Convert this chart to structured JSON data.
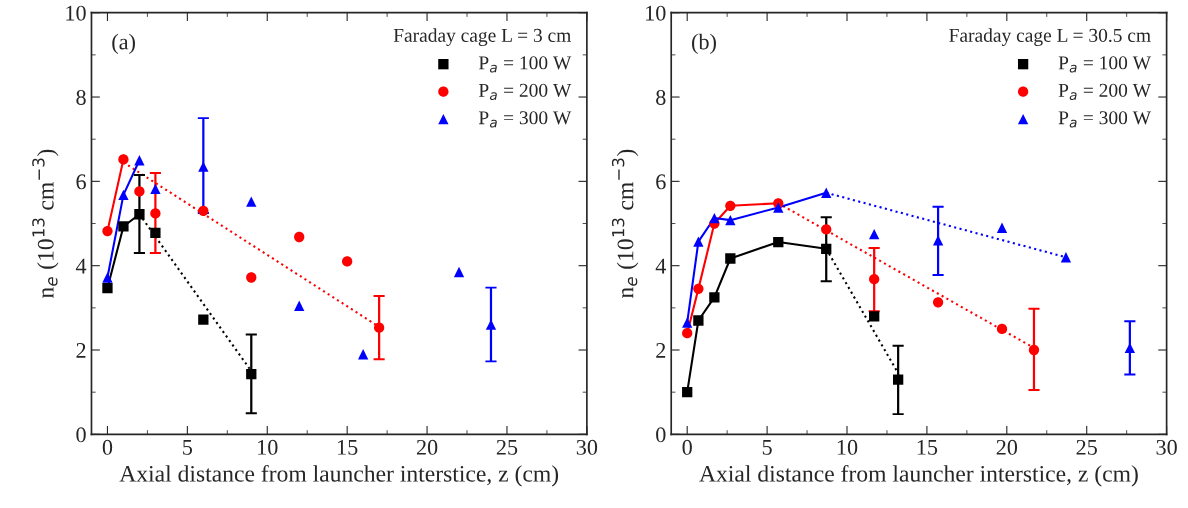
{
  "chart_data": [
    {
      "type": "scatter",
      "title": "(a)",
      "xlabel": "Axial distance from launcher interstice, z (cm)",
      "ylabel": "n$_{e}$ (10$^{13}$ cm$^{−3}$)",
      "legend_title": "Faraday cage L = 3 cm",
      "legend": "top right",
      "grid": false,
      "xlim": [
        -1,
        30
      ],
      "xticks": [
        0,
        5,
        10,
        15,
        20,
        25,
        30
      ],
      "ylim": [
        0,
        10
      ],
      "yticks": [
        0,
        2,
        4,
        6,
        8,
        10
      ],
      "series": [
        {
          "name": "P$_{a}$ = 100 W",
          "color": "#000000",
          "marker": "square",
          "x": [
            0,
            1,
            2,
            3,
            6,
            9
          ],
          "values": [
            3.47,
            4.93,
            5.22,
            4.78,
            2.72,
            1.43
          ],
          "errors": [
            null,
            null,
            [
              4.3,
              6.15
            ],
            null,
            null,
            [
              0.5,
              2.37
            ]
          ]
        },
        {
          "name": "P$_{a}$ = 200 W",
          "color": "#ff0000",
          "marker": "circle",
          "x": [
            0,
            1,
            2,
            3,
            6,
            9,
            12,
            15,
            17
          ],
          "values": [
            4.82,
            6.52,
            5.76,
            5.24,
            5.3,
            3.72,
            4.68,
            4.1,
            2.53
          ],
          "errors": [
            null,
            null,
            null,
            [
              4.3,
              6.2
            ],
            null,
            null,
            null,
            null,
            [
              1.78,
              3.28
            ]
          ]
        },
        {
          "name": "P$_{a}$ = 300 W",
          "color": "#0000ff",
          "marker": "triangle",
          "x": [
            0,
            1,
            2,
            3,
            6,
            9,
            12,
            16,
            22,
            24
          ],
          "values": [
            3.72,
            5.68,
            6.5,
            5.82,
            6.35,
            5.52,
            3.05,
            1.9,
            3.85,
            2.6
          ],
          "errors": [
            null,
            null,
            null,
            null,
            [
              5.25,
              7.5
            ],
            null,
            null,
            null,
            null,
            [
              1.73,
              3.48
            ]
          ]
        },
        {
          "type": "line",
          "color": "#000000",
          "line_style": "solid",
          "x": [
            0,
            1,
            2
          ],
          "values": [
            3.47,
            4.93,
            5.22
          ]
        },
        {
          "type": "line",
          "color": "#000000",
          "line_style": "dotted",
          "x": [
            2,
            9
          ],
          "values": [
            5.22,
            1.5
          ]
        },
        {
          "type": "line",
          "color": "#ff0000",
          "line_style": "solid",
          "x": [
            0,
            1
          ],
          "values": [
            4.82,
            6.52
          ]
        },
        {
          "type": "line",
          "color": "#ff0000",
          "line_style": "dotted",
          "x": [
            1,
            17
          ],
          "values": [
            6.45,
            2.55
          ]
        },
        {
          "type": "line",
          "color": "#0000ff",
          "line_style": "solid",
          "x": [
            0,
            1,
            2
          ],
          "values": [
            3.72,
            5.68,
            6.5
          ]
        }
      ]
    },
    {
      "type": "scatter",
      "title": "(b)",
      "xlabel": "Axial distance from launcher interstice, z (cm)",
      "ylabel": "n$_{e}$ (10$^{13}$ cm$^{−3}$)",
      "legend_title": "Faraday cage L = 30.5 cm",
      "legend": "top right",
      "grid": false,
      "xlim": [
        -1,
        30
      ],
      "xticks": [
        0,
        5,
        10,
        15,
        20,
        25,
        30
      ],
      "ylim": [
        0,
        10
      ],
      "yticks": [
        0,
        2,
        4,
        6,
        8,
        10
      ],
      "series": [
        {
          "name": "P$_{a}$ = 100 W",
          "color": "#000000",
          "marker": "square",
          "x": [
            0,
            0.7,
            1.7,
            2.7,
            5.7,
            8.7,
            11.7,
            13.2
          ],
          "values": [
            1.0,
            2.7,
            3.25,
            4.17,
            4.56,
            4.4,
            2.8,
            1.3
          ],
          "errors": [
            null,
            null,
            null,
            null,
            null,
            [
              3.63,
              5.15
            ],
            null,
            [
              0.48,
              2.1
            ]
          ]
        },
        {
          "name": "P$_{a}$ = 200 W",
          "color": "#ff0000",
          "marker": "circle",
          "x": [
            0,
            0.7,
            1.7,
            2.7,
            5.7,
            8.7,
            11.7,
            15.7,
            19.7,
            21.7
          ],
          "values": [
            2.4,
            3.45,
            5.0,
            5.42,
            5.48,
            4.86,
            3.68,
            3.13,
            2.5,
            2.0
          ],
          "errors": [
            null,
            null,
            null,
            null,
            null,
            null,
            [
              2.92,
              4.42
            ],
            null,
            null,
            [
              1.05,
              2.98
            ]
          ]
        },
        {
          "name": "P$_{a}$ = 300 W",
          "color": "#0000ff",
          "marker": "triangle",
          "x": [
            0,
            0.7,
            1.7,
            2.7,
            5.7,
            8.7,
            11.7,
            15.7,
            19.7,
            23.7,
            27.7
          ],
          "values": [
            2.65,
            4.57,
            5.13,
            5.08,
            5.38,
            5.73,
            4.75,
            4.6,
            4.9,
            4.2,
            2.05
          ],
          "errors": [
            null,
            null,
            null,
            null,
            null,
            null,
            null,
            [
              3.78,
              5.4
            ],
            null,
            null,
            [
              1.42,
              2.68
            ]
          ]
        },
        {
          "type": "line",
          "color": "#000000",
          "line_style": "solid",
          "x": [
            0,
            0.7,
            1.7,
            2.7,
            5.7,
            8.7
          ],
          "values": [
            1.0,
            2.7,
            3.25,
            4.17,
            4.56,
            4.4
          ]
        },
        {
          "type": "line",
          "color": "#000000",
          "line_style": "dotted",
          "x": [
            8.7,
            13.2
          ],
          "values": [
            4.4,
            1.45
          ]
        },
        {
          "type": "line",
          "color": "#ff0000",
          "line_style": "solid",
          "x": [
            0,
            0.7,
            1.7,
            2.7,
            5.7
          ],
          "values": [
            2.4,
            3.45,
            5.0,
            5.42,
            5.48
          ]
        },
        {
          "type": "line",
          "color": "#ff0000",
          "line_style": "dotted",
          "x": [
            5.7,
            21.7
          ],
          "values": [
            5.48,
            2.05
          ]
        },
        {
          "type": "line",
          "color": "#0000ff",
          "line_style": "solid",
          "x": [
            0,
            0.7,
            1.7,
            2.7,
            5.7,
            8.7
          ],
          "values": [
            2.65,
            4.57,
            5.13,
            5.08,
            5.38,
            5.73
          ]
        },
        {
          "type": "line",
          "color": "#0000ff",
          "line_style": "dotted",
          "x": [
            8.7,
            23.7
          ],
          "values": [
            5.73,
            4.2
          ]
        }
      ]
    }
  ]
}
